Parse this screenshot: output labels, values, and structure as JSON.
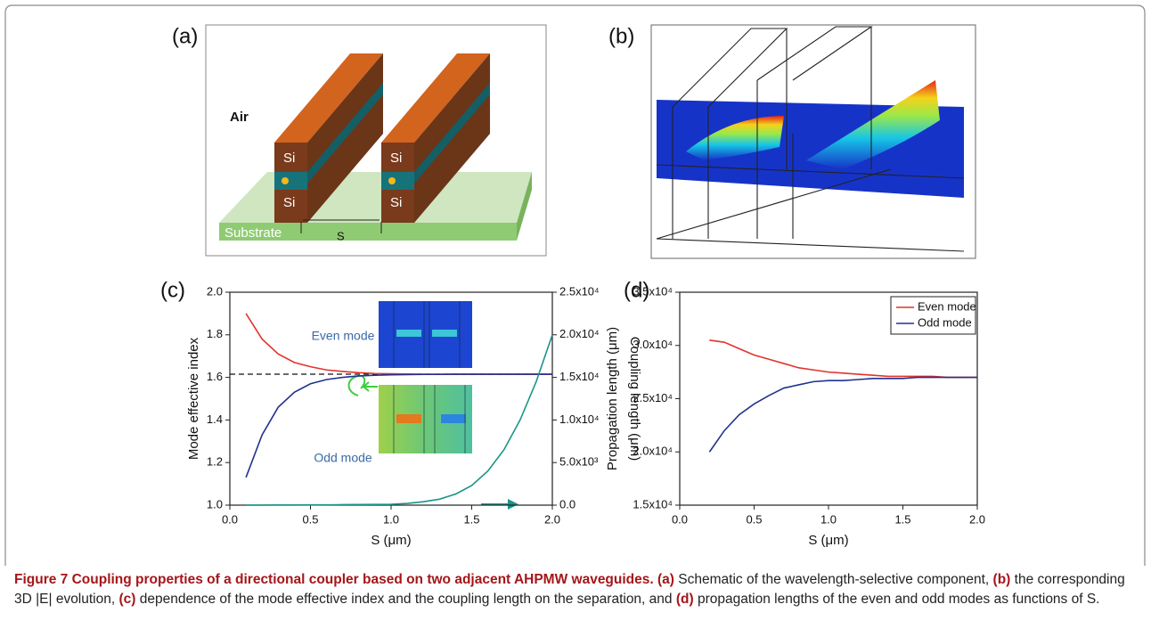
{
  "panel_labels": [
    "(a)",
    "(b)",
    "(c)",
    "(d)"
  ],
  "schematic": {
    "air": "Air",
    "si": [
      "Si",
      "Si",
      "Si",
      "Si"
    ],
    "substrate": "Substrate",
    "separation": "S"
  },
  "chart_data": [
    {
      "type": "line",
      "x": [
        0.1,
        0.2,
        0.3,
        0.4,
        0.5,
        0.6,
        0.7,
        0.8,
        0.9,
        1.0,
        1.1,
        1.2,
        1.3,
        1.4,
        1.5,
        1.6,
        1.7,
        1.8,
        1.9,
        2.0
      ],
      "xlim": [
        0,
        2
      ],
      "xticks": [
        {
          "value": 0,
          "label": "0.0"
        },
        0.5,
        {
          "value": 1,
          "label": "1.0"
        },
        1.5,
        {
          "value": 2,
          "label": "2.0"
        }
      ],
      "ylim": [
        1,
        2
      ],
      "yticks": [
        {
          "value": 1,
          "label": "1.0"
        },
        1.2,
        1.4,
        1.6,
        1.8,
        {
          "value": 2,
          "label": "2.0"
        }
      ],
      "y2lim": [
        0,
        25000
      ],
      "y2ticks": [
        {
          "value": 0,
          "label": "0.0"
        },
        {
          "value": 5000,
          "label": "5.0x10³"
        },
        {
          "value": 10000,
          "label": "1.0x10⁴"
        },
        {
          "value": 15000,
          "label": "1.5x10⁴"
        },
        {
          "value": 20000,
          "label": "2.0x10⁴"
        },
        {
          "value": 25000,
          "label": "2.5x10⁴"
        }
      ],
      "x_label": "S (μm)",
      "y_label": "Mode effective index",
      "y2_label": "Coupling length (μm)",
      "reference_line": 1.615,
      "legend": false,
      "series": [
        {
          "name": "Even mode",
          "color": "#e2332b",
          "values": [
            1.9,
            1.78,
            1.71,
            1.67,
            1.65,
            1.635,
            1.628,
            1.622,
            1.618,
            1.617,
            1.616,
            1.615,
            1.615,
            1.615,
            1.615,
            1.615,
            1.615,
            1.615,
            1.615,
            1.615
          ]
        },
        {
          "name": "Odd mode",
          "color": "#22318f",
          "values": [
            1.13,
            1.33,
            1.46,
            1.53,
            1.57,
            1.59,
            1.6,
            1.607,
            1.61,
            1.612,
            1.613,
            1.614,
            1.614,
            1.615,
            1.615,
            1.615,
            1.615,
            1.615,
            1.615,
            1.615
          ]
        },
        {
          "color": "#1a9488",
          "axis": "y2",
          "values": [
            10,
            10,
            15,
            20,
            30,
            40,
            55,
            75,
            90,
            100,
            200,
            400,
            700,
            1300,
            2300,
            4000,
            6500,
            10000,
            14500,
            20000
          ]
        }
      ]
    },
    {
      "type": "line",
      "x": [
        0.2,
        0.3,
        0.4,
        0.5,
        0.6,
        0.7,
        0.8,
        0.9,
        1.0,
        1.1,
        1.2,
        1.3,
        1.4,
        1.5,
        1.6,
        1.7,
        1.8,
        1.9,
        2.0
      ],
      "xlim": [
        0,
        2
      ],
      "xticks": [
        {
          "value": 0,
          "label": "0.0"
        },
        0.5,
        {
          "value": 1,
          "label": "1.0"
        },
        1.5,
        {
          "value": 2,
          "label": "2.0"
        }
      ],
      "ylim": [
        15000,
        35000
      ],
      "yticks": [
        {
          "value": 15000,
          "label": "1.5x10⁴"
        },
        {
          "value": 20000,
          "label": "2.0x10⁴"
        },
        {
          "value": 25000,
          "label": "2.5x10⁴"
        },
        {
          "value": 30000,
          "label": "3.0x10⁴"
        },
        {
          "value": 35000,
          "label": "3.5x10⁴"
        }
      ],
      "x_label": "S (μm)",
      "y_label": "Propagation length (μm)",
      "legend": "upper right",
      "series": [
        {
          "name": "Even mode",
          "color": "#e2332b",
          "values": [
            30500,
            30300,
            29700,
            29100,
            28700,
            28300,
            27900,
            27700,
            27500,
            27400,
            27300,
            27200,
            27100,
            27100,
            27100,
            27100,
            27000,
            27000,
            27000
          ]
        },
        {
          "name": "Odd mode",
          "color": "#22318f",
          "values": [
            20000,
            22000,
            23500,
            24500,
            25300,
            26000,
            26300,
            26600,
            26700,
            26700,
            26800,
            26900,
            26900,
            26900,
            27000,
            27000,
            27000,
            27000,
            27000
          ]
        }
      ]
    }
  ],
  "caption": {
    "title": "Figure 7 Coupling properties of a directional coupler based on two adjacent AHPMW waveguides.",
    "items": [
      {
        "label": "(a)",
        "text": "Schematic of the wavelength-selective component,"
      },
      {
        "label": "(b)",
        "text": "the corresponding 3D |E| evolution,"
      },
      {
        "label": "(c)",
        "text": "dependence of the mode effective index and the coupling length on the separation, and"
      },
      {
        "label": "(d)",
        "text": "propagation lengths of the even and odd modes as functions of S."
      }
    ]
  }
}
